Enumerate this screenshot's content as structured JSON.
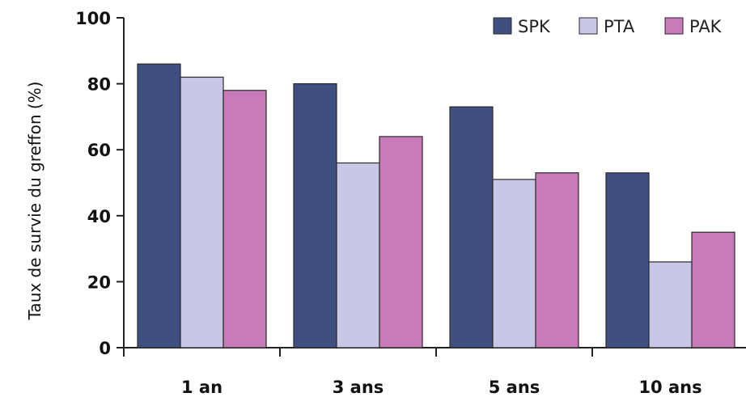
{
  "chart_data": {
    "type": "bar",
    "title": "",
    "xlabel": "",
    "ylabel": "Taux de survie du greffon (%)",
    "ylim": [
      0,
      100
    ],
    "yticks": [
      0,
      20,
      40,
      60,
      80,
      100
    ],
    "categories": [
      "1 an",
      "3 ans",
      "5 ans",
      "10 ans"
    ],
    "series": [
      {
        "name": "SPK",
        "color": "#3f4f82",
        "values": [
          86,
          80,
          73,
          53
        ]
      },
      {
        "name": "PTA",
        "color": "#c8c7e6",
        "values": [
          82,
          56,
          51,
          26
        ]
      },
      {
        "name": "PAK",
        "color": "#c97ab8",
        "values": [
          78,
          64,
          53,
          35
        ]
      }
    ],
    "legend": {
      "position": "top-right"
    },
    "grid": false
  }
}
